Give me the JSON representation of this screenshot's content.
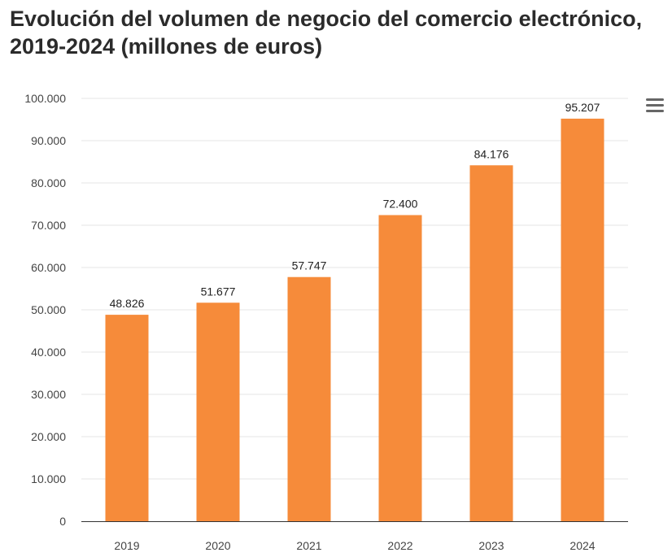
{
  "page": {
    "title": "Evolución del volumen de negocio del comercio electrónico, 2019-2024 (millones de euros)"
  },
  "menu": {
    "icon": "hamburger-menu-icon"
  },
  "colors": {
    "bar": "#F68B3A",
    "grid": "#e6e6e6",
    "axis": "#333333"
  },
  "chart_data": {
    "type": "bar",
    "title": "Evolución del volumen de negocio del comercio electrónico, 2019-2024 (millones de euros)",
    "categories": [
      "2019",
      "2020",
      "2021",
      "2022",
      "2023",
      "2024"
    ],
    "values": [
      48826,
      51677,
      57747,
      72400,
      84176,
      95207
    ],
    "data_labels": [
      "48.826",
      "51.677",
      "57.747",
      "72.400",
      "84.176",
      "95.207"
    ],
    "y_ticks": [
      "0",
      "10.000",
      "20.000",
      "30.000",
      "40.000",
      "50.000",
      "60.000",
      "70.000",
      "80.000",
      "90.000",
      "100.000"
    ],
    "ylim": [
      0,
      100000
    ],
    "xlabel": "",
    "ylabel": "",
    "grid": true,
    "legend": "none"
  }
}
